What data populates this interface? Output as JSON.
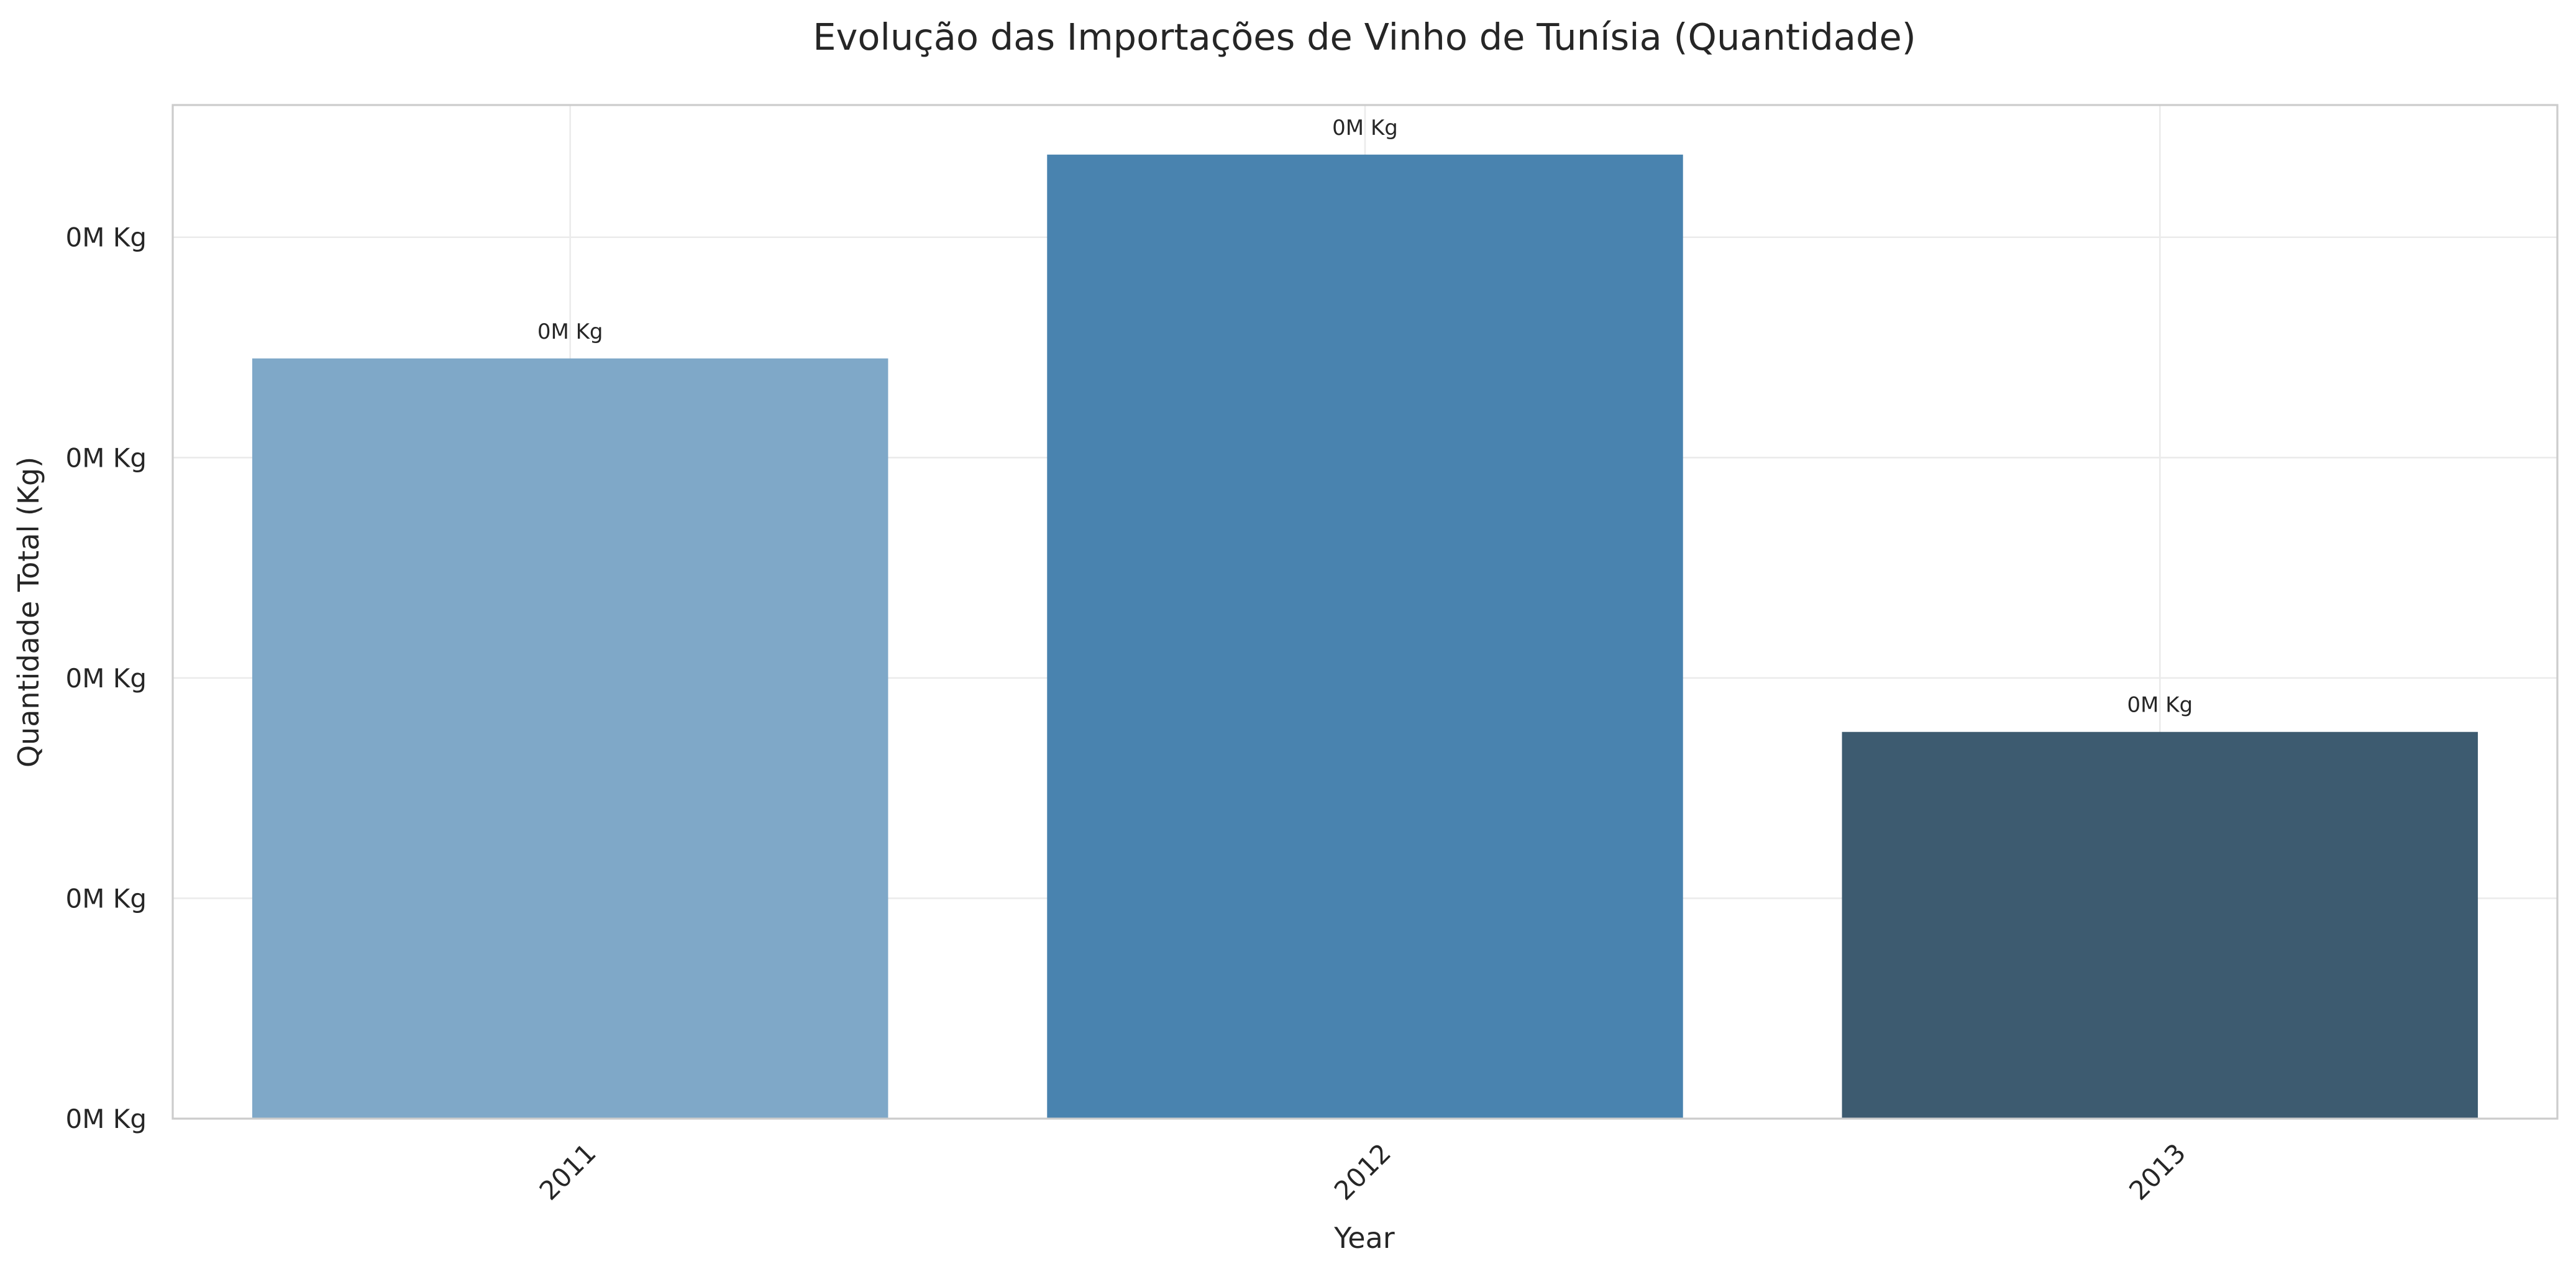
{
  "chart_data": {
    "type": "bar",
    "title": "Evolução das Importações de Vinho de Tunísia (Quantidade)",
    "xlabel": "Year",
    "ylabel": "Quantidade Total (Kg)",
    "categories": [
      "2011",
      "2012",
      "2013"
    ],
    "values": [
      6900,
      8750,
      3510
    ],
    "data_labels": [
      "0M Kg",
      "0M Kg",
      "0M Kg"
    ],
    "colors": [
      "#7fa8c8",
      "#4983af",
      "#3d5b70"
    ],
    "ylim": [
      0,
      9200
    ],
    "yticks": [
      0,
      2000,
      4000,
      6000,
      8000
    ],
    "ytick_labels": [
      "0M Kg",
      "0M Kg",
      "0M Kg",
      "0M Kg",
      "0M Kg"
    ],
    "grid": true,
    "x_tick_rotation": -45
  }
}
